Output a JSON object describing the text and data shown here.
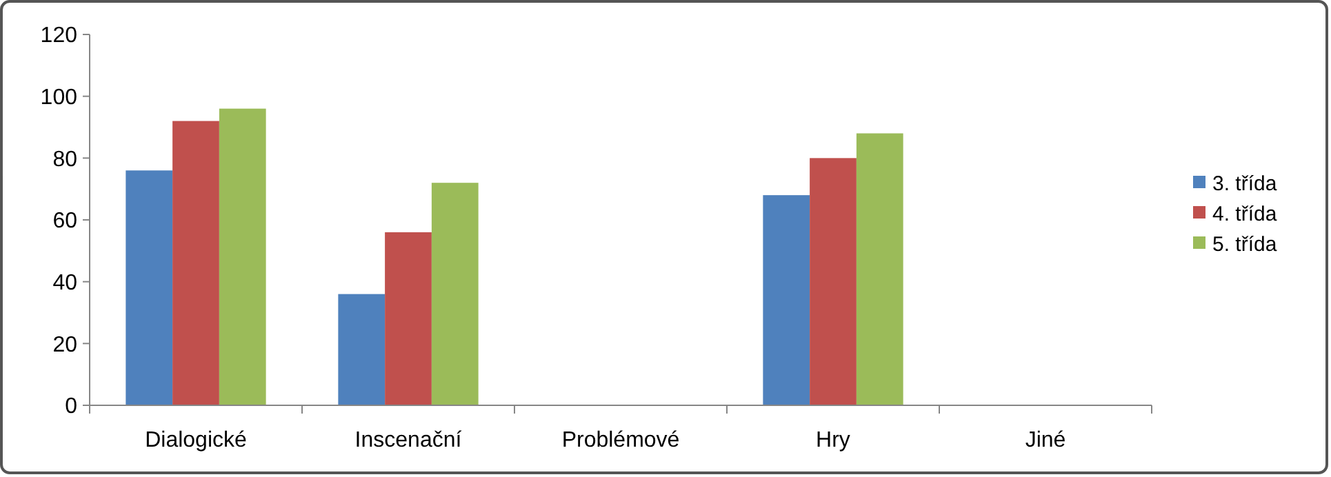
{
  "chart_data": {
    "type": "bar",
    "categories": [
      "Dialogické",
      "Inscenační",
      "Problémové",
      "Hry",
      "Jiné"
    ],
    "series": [
      {
        "name": "3. třída",
        "color": "#4f81bd",
        "values": [
          76,
          36,
          0,
          68,
          0
        ]
      },
      {
        "name": "4. třída",
        "color": "#c0504d",
        "values": [
          92,
          56,
          0,
          80,
          0
        ]
      },
      {
        "name": "5. třída",
        "color": "#9bbb59",
        "values": [
          96,
          72,
          0,
          88,
          0
        ]
      }
    ],
    "ylim": [
      0,
      120
    ],
    "yticks": [
      0,
      20,
      40,
      60,
      80,
      100,
      120
    ],
    "grid": false,
    "legend": "right"
  }
}
